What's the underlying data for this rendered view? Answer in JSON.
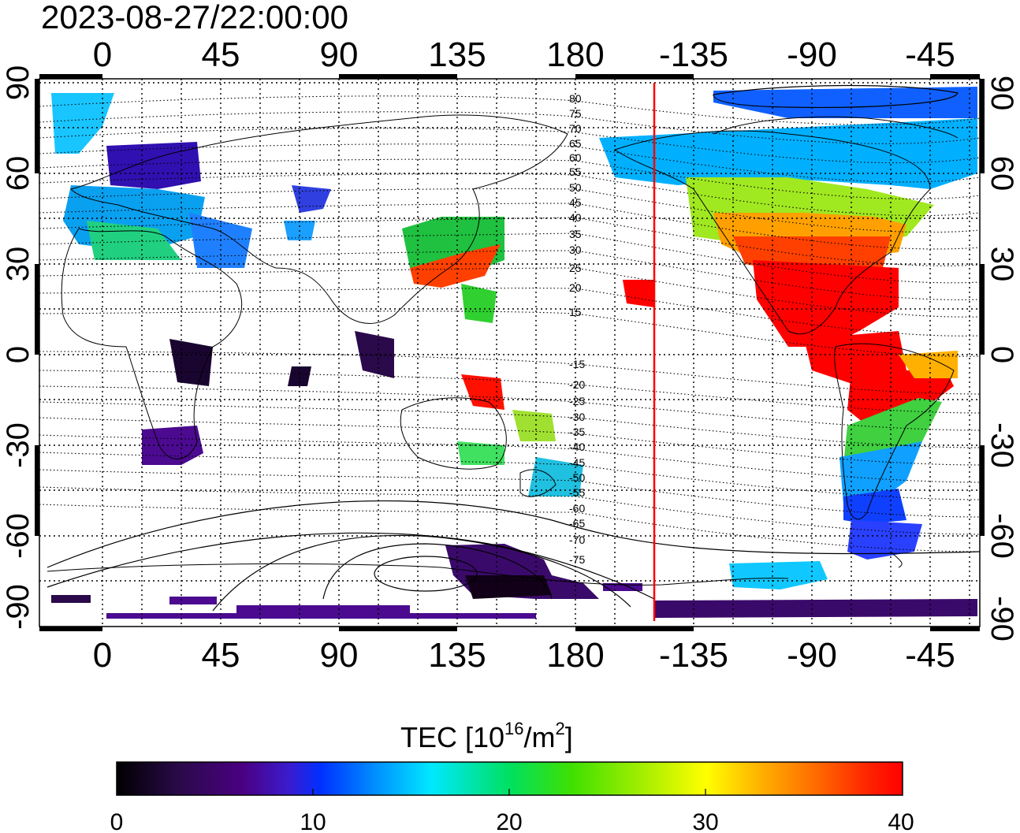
{
  "title": "2023-08-27/22:00:00",
  "map": {
    "lon_ticks_top": [
      "0",
      "45",
      "90",
      "135",
      "180",
      "-135",
      "-90",
      "-45"
    ],
    "lon_ticks_bottom": [
      "0",
      "45",
      "90",
      "135",
      "180",
      "-135",
      "-90",
      "-45"
    ],
    "lat_ticks_left": [
      "90",
      "60",
      "30",
      "0",
      "-30",
      "-60",
      "-90"
    ],
    "lat_ticks_right": [
      "90",
      "60",
      "30",
      "0",
      "-30",
      "-60",
      "-90"
    ],
    "mag_lat_labels_north": [
      "80",
      "75",
      "70",
      "65",
      "60",
      "55",
      "50",
      "45",
      "40",
      "35",
      "30",
      "25",
      "20",
      "15"
    ],
    "mag_lat_labels_south": [
      "-15",
      "-20",
      "-25",
      "-30",
      "-35",
      "-40",
      "-45",
      "-50",
      "-55",
      "-60",
      "-65",
      "-70",
      "-75"
    ],
    "terminator_color": "#ff0000"
  },
  "colorbar": {
    "label_main": "TEC  [10",
    "label_exp1": "16",
    "label_mid": "/m",
    "label_exp2": "2",
    "label_end": "]",
    "min": 0,
    "max": 40,
    "ticks": [
      "0",
      "10",
      "20",
      "30",
      "40"
    ],
    "colormap": [
      "#000000",
      "#2a0a4a",
      "#4b0082",
      "#3a1ccf",
      "#0030ff",
      "#0090ff",
      "#00e8ff",
      "#00e060",
      "#40e000",
      "#b0f000",
      "#ffff00",
      "#ffb000",
      "#ff6000",
      "#ff2000",
      "#ff0000"
    ]
  }
}
